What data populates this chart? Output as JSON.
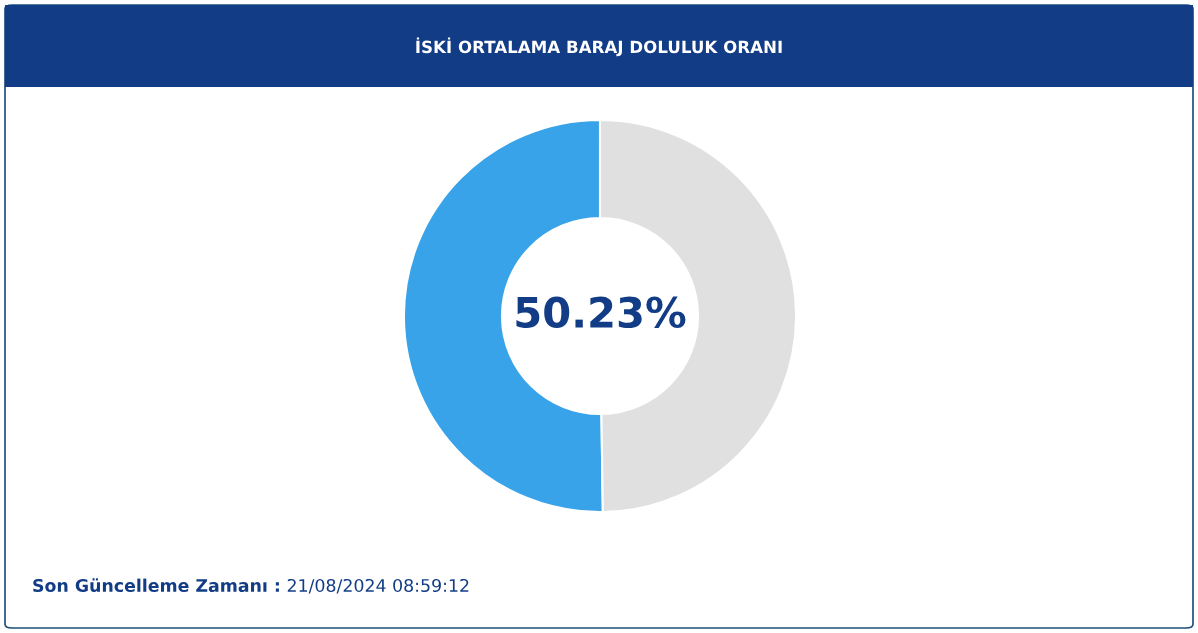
{
  "chart_data": {
    "type": "donut",
    "title": "İSKİ ORTALAMA BARAJ DOLULUK ORANI",
    "categories": [
      null,
      null
    ],
    "values": [
      50.23,
      49.77
    ],
    "colors": [
      "#38a3e8",
      "#e0e0e0"
    ],
    "annotations": [
      "50.23%",
      "Son Güncelleme Zamanı :",
      "21/08/2024 08:59:12"
    ]
  }
}
